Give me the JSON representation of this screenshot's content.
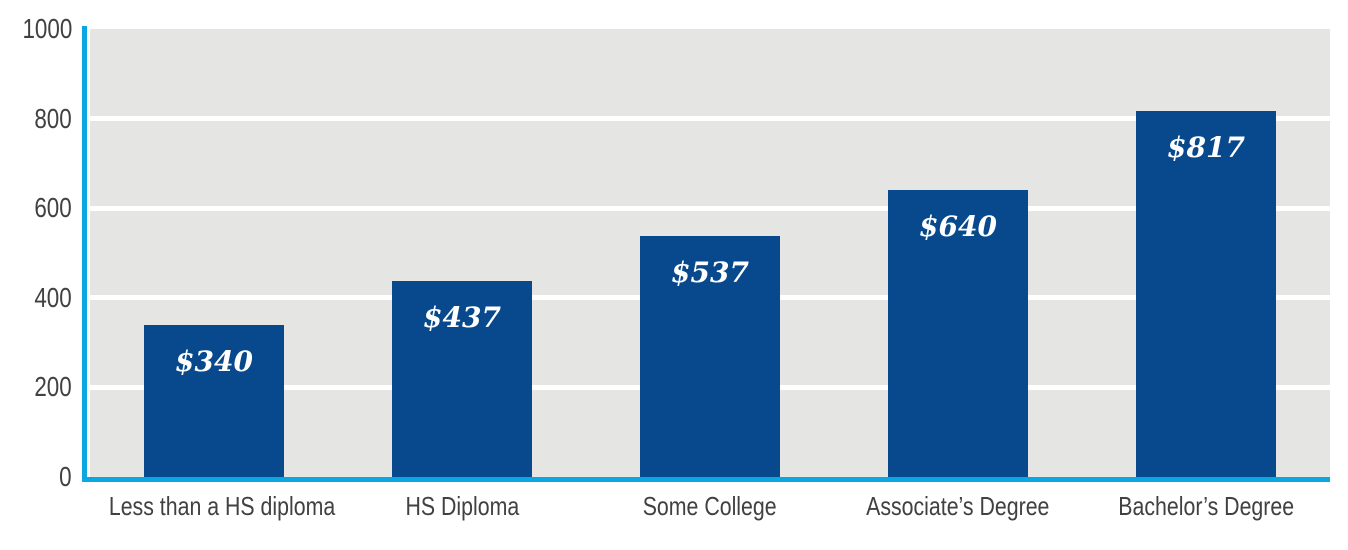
{
  "chart_data": {
    "type": "bar",
    "title": "",
    "xlabel": "",
    "ylabel": "",
    "categories": [
      "Less than a HS diploma",
      "HS Diploma",
      "Some College",
      "Associate’s Degree",
      "Bachelor’s Degree"
    ],
    "values": [
      340,
      437,
      537,
      640,
      817
    ],
    "bar_labels": [
      "$340",
      "$437",
      "$537",
      "$640",
      "$817"
    ],
    "ylim": [
      0,
      1000
    ],
    "yticks": [
      0,
      200,
      400,
      600,
      800,
      1000
    ],
    "grid": "horizontal",
    "gridlines_at": [
      200,
      400,
      600,
      800
    ],
    "legend": "none"
  },
  "colors": {
    "bar": "#07498C",
    "axis_line": "#0AA7E2",
    "plot_background": "#E5E5E4",
    "gridline": "#FFFFFF",
    "tick_label": "#414042",
    "bar_value_label": "#FFFFFF",
    "page_background": "#FFFFFF"
  }
}
